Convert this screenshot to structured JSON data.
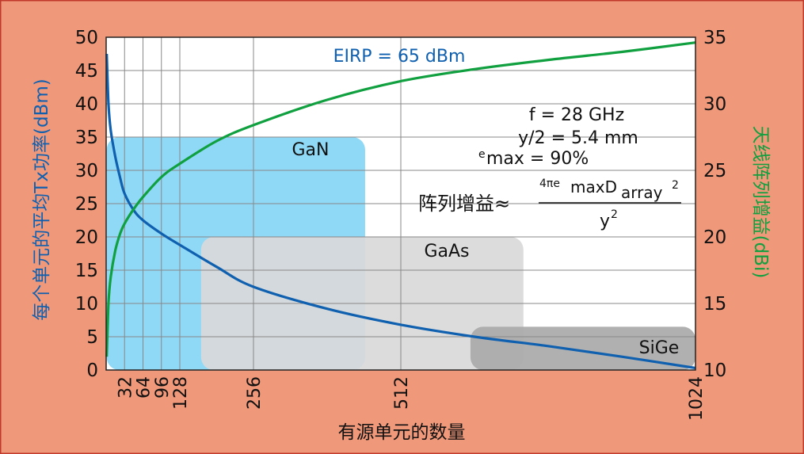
{
  "chart_data": {
    "type": "line",
    "colors": {
      "background": "#f0987a",
      "border": "#c0392b",
      "plot_bg": "#ffffff",
      "grid": "#888888",
      "left_series": "#1060b0",
      "right_series": "#10a040",
      "gan": "#87d6f5",
      "gaas": "#d9d9d9",
      "sige": "#a9a9a9"
    },
    "x_axis": {
      "label": "有源单元的数量",
      "range": [
        0,
        1024
      ],
      "ticks": [
        {
          "value": 32,
          "label": "32"
        },
        {
          "value": 64,
          "label": "64"
        },
        {
          "value": 96,
          "label": "96"
        },
        {
          "value": 128,
          "label": "128"
        },
        {
          "value": 256,
          "label": "256"
        },
        {
          "value": 512,
          "label": "512"
        },
        {
          "value": 1024,
          "label": "1024"
        }
      ]
    },
    "y_left": {
      "label": "每个单元的平均Tx功率(dBm)",
      "range": [
        0,
        50
      ],
      "ticks": [
        {
          "value": 0,
          "label": "0"
        },
        {
          "value": 5,
          "label": "5"
        },
        {
          "value": 10,
          "label": "10"
        },
        {
          "value": 15,
          "label": "15"
        },
        {
          "value": 20,
          "label": "20"
        },
        {
          "value": 25,
          "label": "25"
        },
        {
          "value": 30,
          "label": "30"
        },
        {
          "value": 35,
          "label": "35"
        },
        {
          "value": 40,
          "label": "40"
        },
        {
          "value": 45,
          "label": "45"
        },
        {
          "value": 50,
          "label": "50"
        }
      ]
    },
    "y_right": {
      "label": "天线阵列增益(dBi)",
      "range": [
        10,
        35
      ],
      "ticks": [
        {
          "value": 10,
          "label": "10"
        },
        {
          "value": 15,
          "label": "15"
        },
        {
          "value": 20,
          "label": "20"
        },
        {
          "value": 25,
          "label": "25"
        },
        {
          "value": 30,
          "label": "30"
        },
        {
          "value": 35,
          "label": "35"
        }
      ]
    },
    "series": [
      {
        "name": "EIRP = 65 dBm",
        "axis": "left",
        "x": [
          1,
          4,
          8,
          16,
          24,
          32,
          48,
          64,
          96,
          128,
          192,
          256,
          384,
          512,
          640,
          768,
          896,
          1024
        ],
        "y": [
          47.5,
          40,
          36,
          32,
          29,
          26.5,
          24,
          22.5,
          20.5,
          18.8,
          15.5,
          12.5,
          9.2,
          6.8,
          5,
          3.6,
          2,
          0.3
        ]
      },
      {
        "name": "",
        "axis": "right",
        "x": [
          1,
          4,
          8,
          16,
          24,
          32,
          48,
          64,
          96,
          128,
          192,
          256,
          384,
          512,
          640,
          768,
          896,
          1024
        ],
        "y": [
          11,
          15,
          17,
          19,
          20.2,
          21,
          22.1,
          23,
          24.5,
          25.5,
          27.2,
          28.4,
          30.3,
          31.7,
          32.6,
          33.3,
          33.9,
          34.6
        ]
      }
    ],
    "regions": [
      {
        "label": "GaN",
        "x": [
          1,
          450
        ],
        "y": [
          0,
          35
        ]
      },
      {
        "label": "GaAs",
        "x": [
          165,
          725
        ],
        "y": [
          0,
          20
        ]
      },
      {
        "label": "SiGe",
        "x": [
          633,
          1024
        ],
        "y": [
          0,
          6.5
        ]
      }
    ],
    "annotations": {
      "eirp_label": "EIRP = 65 dBm",
      "f_line": "f = 28 GHz",
      "y_line": "y/2 = 5.4  mm",
      "e_sup": "e",
      "e_line": "max = 90%",
      "formula_lhs": "阵列增益≈",
      "formula_num_sup": "4πe",
      "formula_num_main": "maxD",
      "formula_num_tail": "array",
      "formula_num_exp": "2",
      "formula_den": "y",
      "formula_den_exp": "2"
    }
  }
}
